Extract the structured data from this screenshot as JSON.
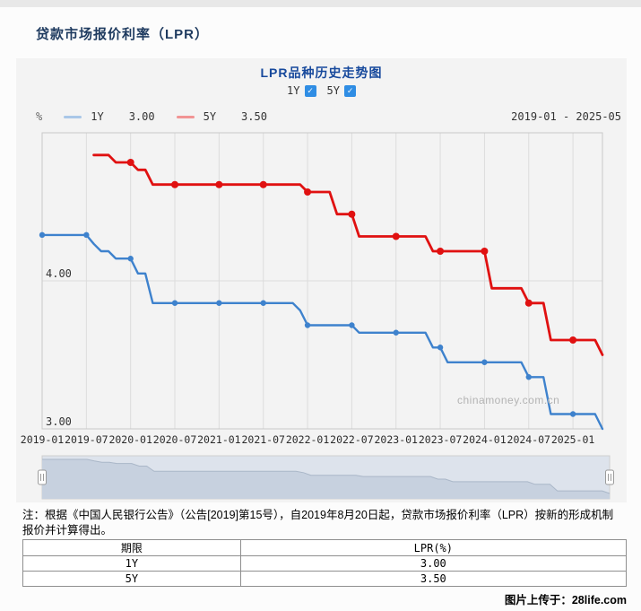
{
  "page": {
    "title": "贷款市场报价利率（LPR）",
    "watermark": "chinamoney.com.cn",
    "uploader_caption": "图片上传于：28life.com"
  },
  "panel": {
    "subtitle": "LPR品种历史走势图",
    "toggles": [
      {
        "label": "1Y",
        "checked": true
      },
      {
        "label": "5Y",
        "checked": true
      }
    ],
    "unit_label": "%",
    "date_range": "2019-01 - 2025-05",
    "legend": [
      {
        "name": "1Y",
        "value": "3.00",
        "swatch": "#a9c7e8"
      },
      {
        "name": "5Y",
        "value": "3.50",
        "swatch": "#f19494"
      }
    ]
  },
  "chart_data": {
    "type": "line",
    "title": "LPR品种历史走势图",
    "x_start": "2019-01",
    "x_end": "2025-05",
    "x_ticks": [
      "2019-01",
      "2019-07",
      "2020-01",
      "2020-07",
      "2021-01",
      "2021-07",
      "2022-01",
      "2022-07",
      "2023-01",
      "2023-07",
      "2024-01",
      "2024-07",
      "2025-01"
    ],
    "tick_every_months": 6,
    "marker_every": 6,
    "ylim": [
      3.0,
      5.0
    ],
    "y_gridlines": [
      {
        "value": 4.0,
        "label": "4.00",
        "draw_line": true
      },
      {
        "value": 3.0,
        "label": "3.00",
        "draw_line": false
      }
    ],
    "grid": true,
    "legend_position": "top-left",
    "series": [
      {
        "name": "1Y",
        "color": "#3e82cd",
        "values": [
          4.31,
          4.31,
          4.31,
          4.31,
          4.31,
          4.31,
          4.31,
          4.25,
          4.2,
          4.2,
          4.15,
          4.15,
          4.15,
          4.05,
          4.05,
          3.85,
          3.85,
          3.85,
          3.85,
          3.85,
          3.85,
          3.85,
          3.85,
          3.85,
          3.85,
          3.85,
          3.85,
          3.85,
          3.85,
          3.85,
          3.85,
          3.85,
          3.85,
          3.85,
          3.85,
          3.8,
          3.7,
          3.7,
          3.7,
          3.7,
          3.7,
          3.7,
          3.7,
          3.65,
          3.65,
          3.65,
          3.65,
          3.65,
          3.65,
          3.65,
          3.65,
          3.65,
          3.65,
          3.55,
          3.55,
          3.45,
          3.45,
          3.45,
          3.45,
          3.45,
          3.45,
          3.45,
          3.45,
          3.45,
          3.45,
          3.45,
          3.35,
          3.35,
          3.35,
          3.1,
          3.1,
          3.1,
          3.1,
          3.1,
          3.1,
          3.1,
          3.0
        ]
      },
      {
        "name": "5Y",
        "color": "#e01111",
        "values": [
          null,
          null,
          null,
          null,
          null,
          null,
          null,
          4.85,
          4.85,
          4.85,
          4.8,
          4.8,
          4.8,
          4.75,
          4.75,
          4.65,
          4.65,
          4.65,
          4.65,
          4.65,
          4.65,
          4.65,
          4.65,
          4.65,
          4.65,
          4.65,
          4.65,
          4.65,
          4.65,
          4.65,
          4.65,
          4.65,
          4.65,
          4.65,
          4.65,
          4.65,
          4.6,
          4.6,
          4.6,
          4.6,
          4.45,
          4.45,
          4.45,
          4.3,
          4.3,
          4.3,
          4.3,
          4.3,
          4.3,
          4.3,
          4.3,
          4.3,
          4.3,
          4.2,
          4.2,
          4.2,
          4.2,
          4.2,
          4.2,
          4.2,
          4.2,
          3.95,
          3.95,
          3.95,
          3.95,
          3.95,
          3.85,
          3.85,
          3.85,
          3.6,
          3.6,
          3.6,
          3.6,
          3.6,
          3.6,
          3.6,
          3.5
        ]
      }
    ]
  },
  "note": {
    "text": "注：根据《中国人民银行公告》（公告[2019]第15号），自2019年8月20日起，贷款市场报价利率（LPR）按新的形成机制报价并计算得出。"
  },
  "table": {
    "headers": [
      "期限",
      "LPR(%)"
    ],
    "rows": [
      [
        "1Y",
        "3.00"
      ],
      [
        "5Y",
        "3.50"
      ]
    ]
  }
}
